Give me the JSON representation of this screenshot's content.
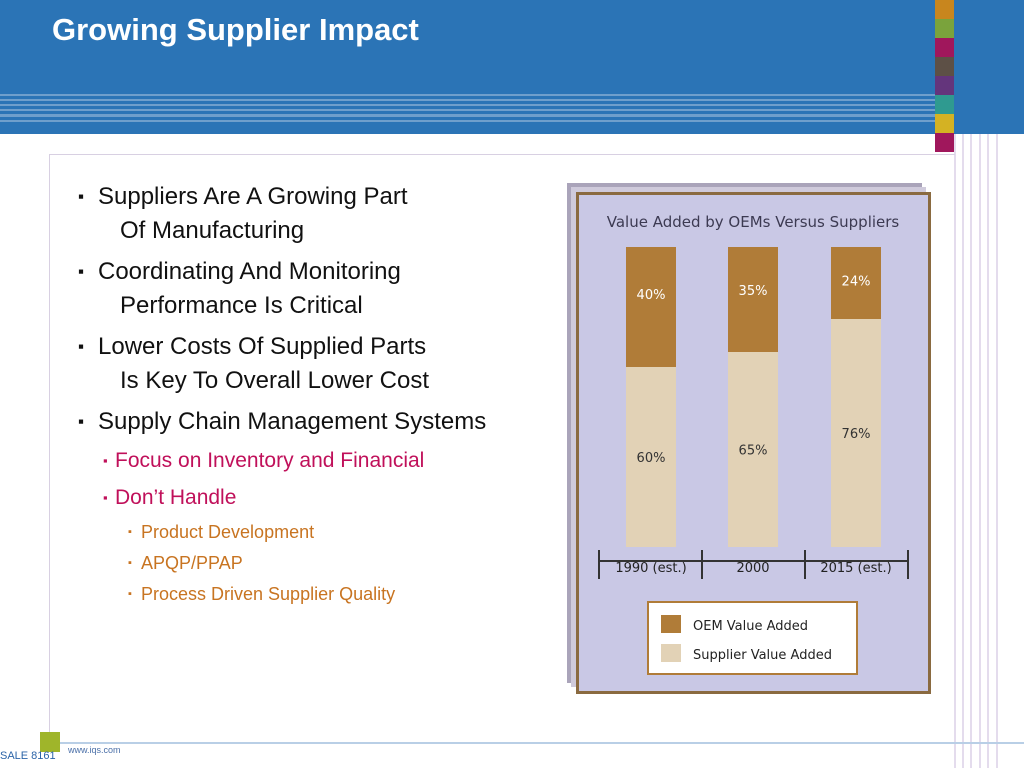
{
  "slide": {
    "title": "Growing Supplier Impact",
    "footer_id": "SALE 8161",
    "footer_url": "www.iqs.com"
  },
  "colors": {
    "header_blue": "#2b74b6",
    "bullet_level2": "#c0105a",
    "bullet_level3": "#c87421",
    "oem": "#b07c38",
    "supplier": "#e2d2b6",
    "swatches": [
      "#c8861e",
      "#7aa33c",
      "#a0175c",
      "#5d5046",
      "#64357c",
      "#2f9a90",
      "#d4b223",
      "#a0175c"
    ]
  },
  "bullets": [
    {
      "level": 1,
      "lines": [
        "Suppliers Are A Growing Part",
        "Of Manufacturing"
      ]
    },
    {
      "level": 1,
      "lines": [
        "Coordinating And Monitoring",
        "Performance Is Critical"
      ]
    },
    {
      "level": 1,
      "lines": [
        "Lower Costs Of Supplied Parts",
        "Is Key To Overall Lower Cost"
      ]
    },
    {
      "level": 1,
      "lines": [
        "Supply Chain Management Systems"
      ]
    },
    {
      "level": 2,
      "lines": [
        "Focus on Inventory and Financial"
      ]
    },
    {
      "level": 2,
      "lines": [
        "Don’t Handle"
      ]
    },
    {
      "level": 3,
      "lines": [
        "Product Development"
      ]
    },
    {
      "level": 3,
      "lines": [
        "APQP/PPAP"
      ]
    },
    {
      "level": 3,
      "lines": [
        "Process Driven Supplier Quality"
      ]
    }
  ],
  "chart_data": {
    "type": "bar",
    "stacked": true,
    "title": "Value Added by OEMs Versus Suppliers",
    "categories": [
      "1990 (est.)",
      "2000",
      "2015 (est.)"
    ],
    "series": [
      {
        "name": "Supplier Value Added",
        "values": [
          60,
          65,
          76
        ],
        "labels": [
          "60%",
          "65%",
          "76%"
        ],
        "color": "#e2d2b6"
      },
      {
        "name": "OEM Value Added",
        "values": [
          40,
          35,
          24
        ],
        "labels": [
          "40%",
          "35%",
          "24%"
        ],
        "color": "#b07c38"
      }
    ],
    "ylim": [
      0,
      100
    ],
    "xlabel": "",
    "ylabel": "",
    "grid": false,
    "legend": [
      "OEM Value Added",
      "Supplier Value Added"
    ],
    "legend_position": "bottom"
  }
}
